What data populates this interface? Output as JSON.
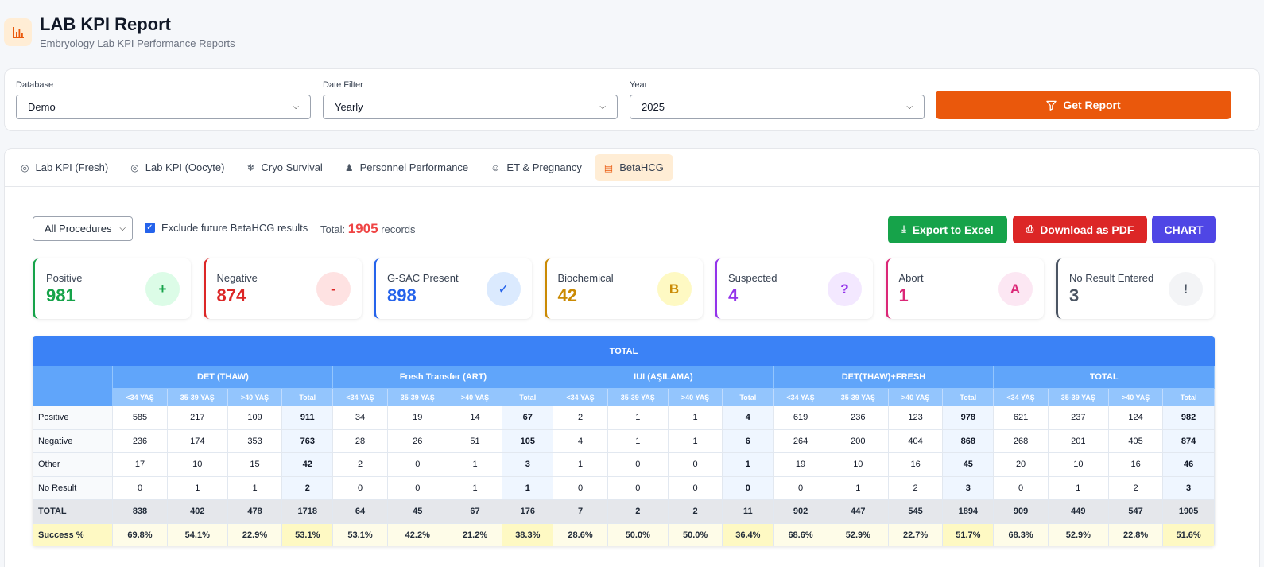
{
  "header": {
    "title": "LAB KPI Report",
    "subtitle": "Embryology Lab KPI Performance Reports",
    "logo_icon": "bar-chart-icon"
  },
  "filters": {
    "database": {
      "label": "Database",
      "value": "Demo"
    },
    "date_filter": {
      "label": "Date Filter",
      "value": "Yearly"
    },
    "year": {
      "label": "Year",
      "value": "2025"
    },
    "get_report_label": "Get Report"
  },
  "tabs": [
    {
      "label": "Lab KPI (Fresh)",
      "icon": "target-icon"
    },
    {
      "label": "Lab KPI (Oocyte)",
      "icon": "target-icon"
    },
    {
      "label": "Cryo Survival",
      "icon": "snowflake-icon"
    },
    {
      "label": "Personnel Performance",
      "icon": "users-icon"
    },
    {
      "label": "ET & Pregnancy",
      "icon": "smile-icon"
    },
    {
      "label": "BetaHCG",
      "icon": "document-icon",
      "active": true
    }
  ],
  "toolbar": {
    "procedure_value": "All Procedures",
    "exclude_label": "Exclude future BetaHCG results",
    "exclude_checked": true,
    "total_prefix": "Total:",
    "total_value": "1905",
    "total_suffix": "records",
    "export_excel_label": "Export to Excel",
    "download_pdf_label": "Download as PDF",
    "chart_label": "CHART"
  },
  "stats": [
    {
      "label": "Positive",
      "value": "981",
      "icon": "+",
      "color": "#16a34a",
      "bg": "#dcfce7"
    },
    {
      "label": "Negative",
      "value": "874",
      "icon": "-",
      "color": "#dc2626",
      "bg": "#fee2e2"
    },
    {
      "label": "G-SAC Present",
      "value": "898",
      "icon": "✓",
      "color": "#2563eb",
      "bg": "#dbeafe"
    },
    {
      "label": "Biochemical",
      "value": "42",
      "icon": "B",
      "color": "#ca8a04",
      "bg": "#fef9c3"
    },
    {
      "label": "Suspected",
      "value": "4",
      "icon": "?",
      "color": "#9333ea",
      "bg": "#f3e8ff"
    },
    {
      "label": "Abort",
      "value": "1",
      "icon": "A",
      "color": "#db2777",
      "bg": "#fce7f3"
    },
    {
      "label": "No Result Entered",
      "value": "3",
      "icon": "!",
      "color": "#4b5563",
      "bg": "#f3f4f6"
    }
  ],
  "table": {
    "title": "TOTAL",
    "groups": [
      "DET (THAW)",
      "Fresh Transfer (ART)",
      "IUI (AŞILAMA)",
      "DET(THAW)+FRESH",
      "TOTAL"
    ],
    "subheaders": [
      "<34 YAŞ",
      "35-39 YAŞ",
      ">40 YAŞ",
      "Total"
    ],
    "rows": [
      {
        "label": "Positive",
        "cells": [
          "585",
          "217",
          "109",
          "911",
          "34",
          "19",
          "14",
          "67",
          "2",
          "1",
          "1",
          "4",
          "619",
          "236",
          "123",
          "978",
          "621",
          "237",
          "124",
          "982"
        ]
      },
      {
        "label": "Negative",
        "cells": [
          "236",
          "174",
          "353",
          "763",
          "28",
          "26",
          "51",
          "105",
          "4",
          "1",
          "1",
          "6",
          "264",
          "200",
          "404",
          "868",
          "268",
          "201",
          "405",
          "874"
        ]
      },
      {
        "label": "Other",
        "cells": [
          "17",
          "10",
          "15",
          "42",
          "2",
          "0",
          "1",
          "3",
          "1",
          "0",
          "0",
          "1",
          "19",
          "10",
          "16",
          "45",
          "20",
          "10",
          "16",
          "46"
        ]
      },
      {
        "label": "No Result",
        "cells": [
          "0",
          "1",
          "1",
          "2",
          "0",
          "0",
          "1",
          "1",
          "0",
          "0",
          "0",
          "0",
          "0",
          "1",
          "2",
          "3",
          "0",
          "1",
          "2",
          "3"
        ]
      }
    ],
    "total_row": {
      "label": "TOTAL",
      "cells": [
        "838",
        "402",
        "478",
        "1718",
        "64",
        "45",
        "67",
        "176",
        "7",
        "2",
        "2",
        "11",
        "902",
        "447",
        "545",
        "1894",
        "909",
        "449",
        "547",
        "1905"
      ]
    },
    "success_row": {
      "label": "Success %",
      "cells": [
        "69.8%",
        "54.1%",
        "22.9%",
        "53.1%",
        "53.1%",
        "42.2%",
        "21.2%",
        "38.3%",
        "28.6%",
        "50.0%",
        "50.0%",
        "36.4%",
        "68.6%",
        "52.9%",
        "22.7%",
        "51.7%",
        "68.3%",
        "52.9%",
        "22.8%",
        "51.6%"
      ]
    }
  }
}
